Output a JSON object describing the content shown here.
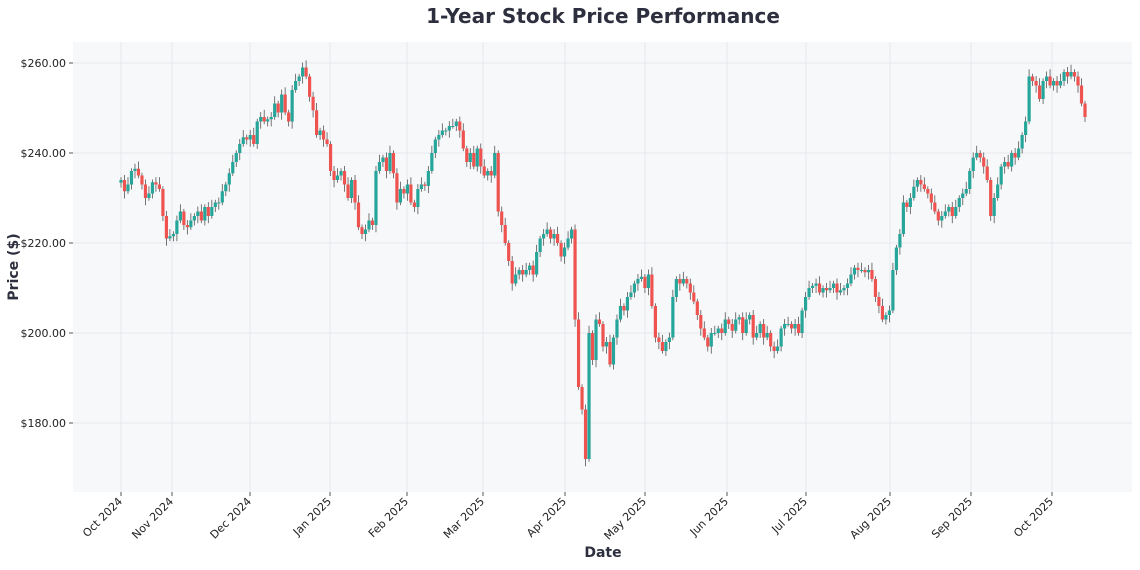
{
  "chart_data": {
    "type": "candlestick",
    "title": "1-Year Stock Price Performance",
    "xlabel": "Date",
    "ylabel": "Price ($)",
    "ylim": [
      164.7,
      264.7
    ],
    "y_ticks": [
      "$180.00",
      "$200.00",
      "$220.00",
      "$240.00",
      "$260.00"
    ],
    "y_tick_values": [
      180,
      200,
      220,
      240,
      260
    ],
    "x_ticks": [
      "Oct 2024",
      "Nov 2024",
      "Dec 2024",
      "Jan 2025",
      "Feb 2025",
      "Mar 2025",
      "Apr 2025",
      "May 2025",
      "Jun 2025",
      "Jul 2025",
      "Aug 2025",
      "Sep 2025",
      "Oct 2025"
    ],
    "grid": true,
    "colors": {
      "up": "#26a69a",
      "down": "#ef5350",
      "background": "#f7f8fa"
    },
    "close": [
      234,
      231.5,
      233,
      236,
      236.5,
      235,
      233,
      230,
      231,
      233.5,
      233,
      232,
      226,
      221,
      221.5,
      222,
      225,
      227,
      224,
      223.5,
      225,
      226,
      227,
      225,
      228,
      226,
      228,
      229,
      229,
      231.5,
      233,
      235.5,
      238,
      240,
      242,
      243.5,
      243,
      244,
      242,
      247,
      248,
      247,
      247.5,
      248,
      251,
      249,
      253,
      249,
      247,
      254,
      256,
      257,
      259,
      257,
      252.5,
      249.5,
      244,
      245,
      243,
      242,
      236,
      234,
      235,
      236,
      233,
      230,
      234,
      229,
      223.5,
      222,
      223,
      225,
      224,
      236,
      238,
      239,
      236,
      240,
      235.5,
      229,
      232,
      231,
      233,
      229,
      228,
      232,
      233,
      232.7,
      236,
      240,
      243,
      244,
      245,
      245,
      246,
      246,
      247,
      245,
      241,
      238,
      240,
      237,
      241,
      237,
      235,
      236,
      235,
      240,
      227,
      224,
      220,
      216,
      211,
      213,
      214,
      213,
      214,
      215,
      213,
      218,
      221,
      222,
      223,
      221,
      222,
      220,
      217,
      219,
      221,
      223,
      203,
      188,
      183,
      172,
      200,
      194,
      203,
      202,
      197,
      198,
      193,
      199,
      203,
      206,
      205,
      208,
      209,
      211,
      212,
      212.5,
      210,
      213,
      206,
      199,
      198,
      196,
      198,
      199,
      208,
      212,
      211,
      212,
      211,
      209,
      207,
      204,
      201,
      199,
      197,
      200,
      200,
      201,
      200,
      203,
      202,
      200.5,
      203,
      203.5,
      200,
      203,
      204,
      199,
      200,
      202,
      199,
      200,
      197,
      196,
      197,
      201,
      202,
      202,
      201,
      202,
      200,
      205,
      208,
      210,
      210.5,
      211,
      209,
      210,
      209.5,
      210,
      211,
      209,
      209.5,
      210,
      211,
      213,
      214.5,
      214,
      214,
      213.5,
      214,
      212,
      208,
      206,
      203,
      204,
      205,
      214,
      219,
      222,
      229,
      228,
      230,
      232.5,
      234,
      233,
      232,
      231,
      229,
      227,
      225,
      226,
      227,
      228,
      226,
      228,
      230,
      231,
      232,
      236,
      239,
      240,
      239,
      237,
      234,
      226,
      230,
      233,
      237,
      238,
      237,
      240,
      239,
      241,
      244,
      247,
      257,
      256,
      255,
      252,
      256,
      257,
      255,
      256,
      255,
      256,
      258,
      257,
      258,
      257,
      255,
      251,
      248
    ]
  }
}
